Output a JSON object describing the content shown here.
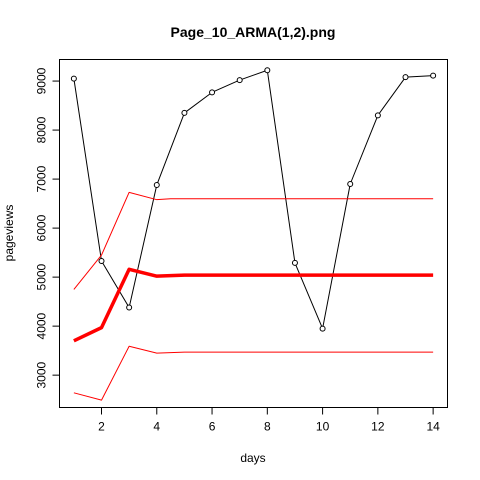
{
  "chart_data": {
    "type": "line",
    "title": "Page_10_ARMA(1,2).png",
    "xlabel": "days",
    "ylabel": "pageviews",
    "xlim": [
      0.48,
      14.52
    ],
    "ylim": [
      2340,
      9440
    ],
    "xticks": [
      2,
      4,
      6,
      8,
      10,
      12,
      14
    ],
    "yticks": [
      3000,
      4000,
      5000,
      6000,
      7000,
      8000,
      9000
    ],
    "grid": false,
    "legend": "none",
    "series": [
      {
        "color": "#000000",
        "style": "line-with-points",
        "x": [
          1,
          2,
          3,
          4,
          5,
          6,
          7,
          8,
          9,
          10,
          11,
          12,
          13,
          14
        ],
        "y": [
          9050,
          5330,
          4380,
          6880,
          8350,
          8770,
          9020,
          9220,
          5290,
          3950,
          6900,
          8300,
          9080,
          9110
        ]
      },
      {
        "color": "#ff0000",
        "style": "thick-line",
        "x": [
          1,
          2,
          3,
          4,
          4.5,
          5,
          6,
          7,
          8,
          9,
          10,
          11,
          12,
          13,
          14
        ],
        "y": [
          3700,
          3970,
          5160,
          5020,
          5030,
          5040,
          5040,
          5040,
          5040,
          5040,
          5040,
          5040,
          5040,
          5040,
          5040
        ]
      },
      {
        "color": "#ff0000",
        "style": "thin-line",
        "x": [
          1,
          2,
          3,
          4,
          4.5,
          5,
          6,
          7,
          8,
          9,
          10,
          11,
          12,
          13,
          14
        ],
        "y": [
          4750,
          5450,
          6730,
          6580,
          6600,
          6600,
          6600,
          6600,
          6600,
          6600,
          6600,
          6600,
          6600,
          6600,
          6600
        ]
      },
      {
        "color": "#ff0000",
        "style": "thin-line",
        "x": [
          1,
          2,
          3,
          4,
          4.5,
          5,
          6,
          7,
          8,
          9,
          10,
          11,
          12,
          13,
          14
        ],
        "y": [
          2640,
          2490,
          3590,
          3450,
          3460,
          3470,
          3470,
          3470,
          3470,
          3470,
          3470,
          3470,
          3470,
          3470,
          3470
        ]
      }
    ]
  }
}
